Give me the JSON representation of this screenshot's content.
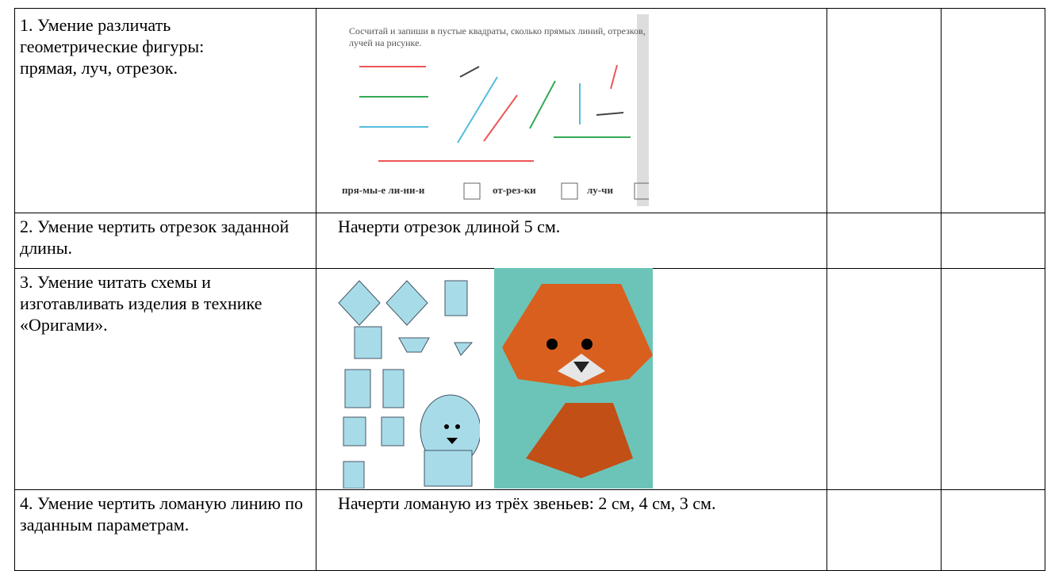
{
  "table": {
    "rows": [
      {
        "skill": "1. Умение различать геометрические фигуры: прямая, луч, отрезок.",
        "task_image": {
          "caption": "Сосчитай и запиши в пустые квадраты, сколько прямых линий, отрезков, лучей на рисунке.",
          "answer_labels": [
            "пря-мы-е ли-ни-и",
            "от-рез-ки",
            "лу-чи"
          ]
        }
      },
      {
        "skill": "2. Умение чертить отрезок заданной длины.",
        "task": "Начерти отрезок длиной 5 см."
      },
      {
        "skill": "3. Умение читать  схемы и изготавливать  изделия в технике «Оригами»."
      },
      {
        "skill": "4. Умение чертить ломаную линию по заданным параметрам.",
        "task": "Начерти ломаную из трёх звеньев: 2 см, 4 см, 3 см."
      }
    ]
  }
}
